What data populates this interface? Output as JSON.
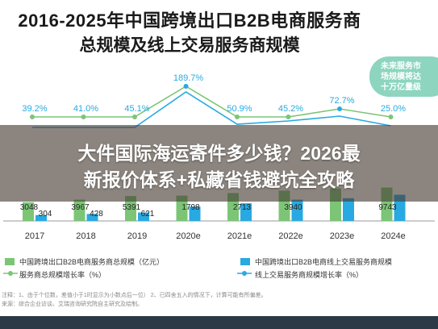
{
  "title_line1": "2016-2025年中国跨境出口B2B电商服务商",
  "title_line2": "总规模及线上交易服务商规模",
  "callout_text": [
    "未来服务市",
    "场规模将达",
    "十万亿量级"
  ],
  "banner_line1": "大件国际海运寄件多少钱？2026最",
  "banner_line2": "新报价体系+私藏省钱避坑全攻略",
  "legend": {
    "total_scale": "中国跨境出口B2B电商服务商总规模（亿元）",
    "online_scale": "中国跨境出口B2B电商线上交易服务商规模",
    "total_growth": "服务商总规模增长率（%）",
    "online_growth": "线上交易服务商规模增长率（%）"
  },
  "footnote": {
    "line1": "注释：1、由于个位数，差值小于1时显示为小数点后一位）  2、已四舍五入的情况下，计算可能有所偏差。",
    "line2": "来源：综合企业访谈、艾瑞咨询研究院自主研究及绘制。"
  },
  "colors": {
    "total_bar": "#7cc576",
    "online_bar": "#29a9e1",
    "total_growth_line": "#7cc576",
    "online_growth_line": "#29a9e1"
  },
  "chart_data": {
    "type": "bar",
    "categories": [
      "2017",
      "2018",
      "2019",
      "2020e",
      "2021e",
      "2022e",
      "2023e",
      "2024e"
    ],
    "series": [
      {
        "name": "中国跨境出口B2B电商服务商总规模（亿元）",
        "values": [
          3048,
          3967,
          5391,
          null,
          null,
          null,
          null,
          9743
        ]
      },
      {
        "name": "中国跨境出口B2B电商线上交易服务商规模",
        "values": [
          304,
          428,
          621,
          1798,
          2713,
          3940,
          null,
          null
        ]
      }
    ],
    "growth_series": [
      {
        "name": "服务商总规模增长率（%）",
        "values": [
          39.2,
          41.0,
          45.1,
          null,
          50.9,
          null,
          null,
          25.0
        ]
      },
      {
        "name": "线上交易服务商规模增长率（%）",
        "values": [
          null,
          null,
          null,
          189.7,
          null,
          null,
          72.7,
          null
        ]
      }
    ],
    "growth_labels": [
      "39.2%",
      "41.0%",
      "45.1%",
      "189.7%",
      "50.9%",
      "45.2%",
      "72.7%",
      "25.0%"
    ],
    "bar_labels_total": [
      "3048",
      "3967",
      "5391",
      "",
      "",
      "",
      "",
      "9743"
    ],
    "bar_labels_online": [
      "304",
      "428",
      "621",
      "1798",
      "2713",
      "3940",
      "",
      ""
    ]
  }
}
